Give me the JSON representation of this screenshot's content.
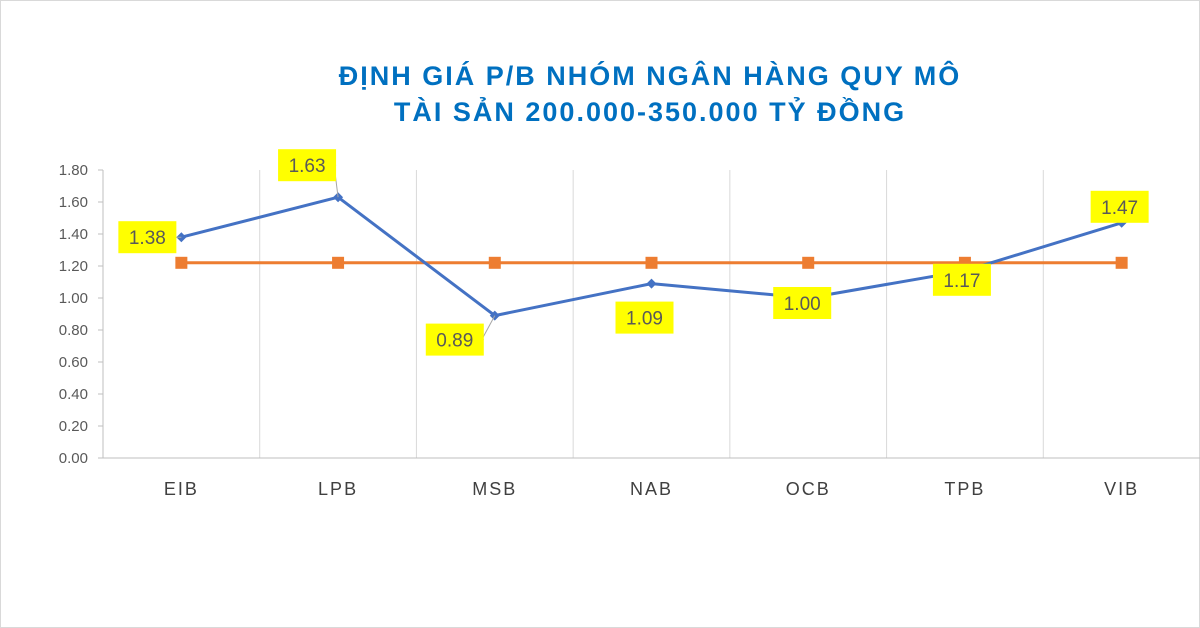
{
  "chart_data": {
    "type": "line",
    "title_lines": [
      "ĐỊNH GIÁ P/B NHÓM NGÂN HÀNG QUY MÔ",
      "TÀI SẢN 200.000-350.000 TỶ ĐỒNG"
    ],
    "categories": [
      "EIB",
      "LPB",
      "MSB",
      "NAB",
      "OCB",
      "TPB",
      "VIB"
    ],
    "series": [
      {
        "values": [
          1.38,
          1.63,
          0.89,
          1.09,
          1.0,
          1.17,
          1.47
        ],
        "color": "#4472c4",
        "marker": "diamond",
        "labels": [
          "1.38",
          "1.63",
          "0.89",
          "1.09",
          "1.00",
          "1.17",
          "1.47"
        ]
      },
      {
        "values": [
          1.22,
          1.22,
          1.22,
          1.22,
          1.22,
          1.22,
          1.22
        ],
        "color": "#ed7d31",
        "marker": "square"
      }
    ],
    "y_ticks": [
      "0.00",
      "0.20",
      "0.40",
      "0.60",
      "0.80",
      "1.00",
      "1.20",
      "1.40",
      "1.60",
      "1.80"
    ],
    "ylim": [
      0,
      1.8
    ],
    "grid": "vertical",
    "label_background": "#ffff00",
    "xlabel": "",
    "ylabel": ""
  }
}
